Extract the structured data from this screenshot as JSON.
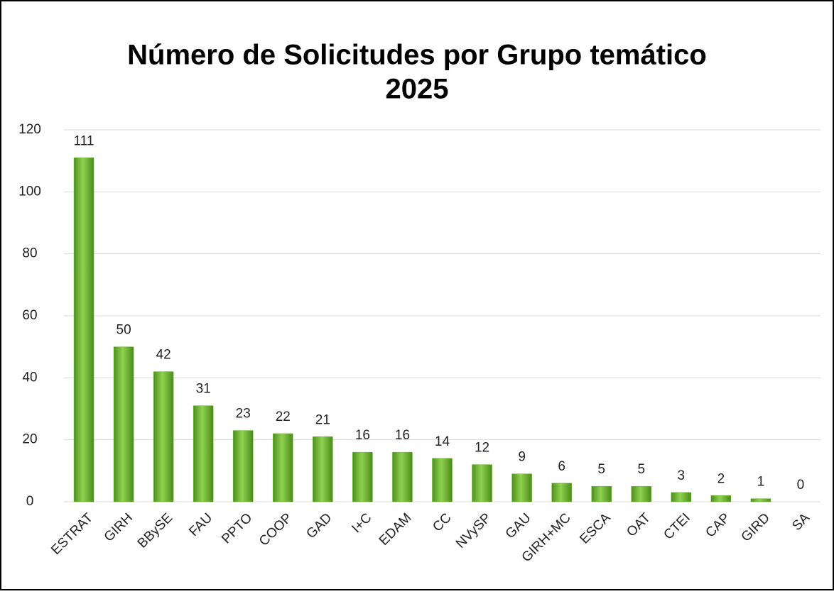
{
  "chart_data": {
    "type": "bar",
    "title": [
      "Número de Solicitudes por Grupo temático",
      "2025"
    ],
    "categories": [
      "ESTRAT",
      "GIRH",
      "BBySE",
      "FAU",
      "PPTO",
      "COOP",
      "GAD",
      "I+C",
      "EDAM",
      "CC",
      "NVySP",
      "GAU",
      "GIRH+MC",
      "ESCA",
      "OAT",
      "CTEI",
      "CAP",
      "GIRD",
      "SA"
    ],
    "values": [
      111,
      50,
      42,
      31,
      23,
      22,
      21,
      16,
      16,
      14,
      12,
      9,
      6,
      5,
      5,
      3,
      2,
      1,
      0
    ],
    "color": "#6fb536",
    "ylim": [
      0,
      120
    ],
    "yticks": [
      0,
      20,
      40,
      60,
      80,
      100,
      120
    ],
    "grid": true
  }
}
